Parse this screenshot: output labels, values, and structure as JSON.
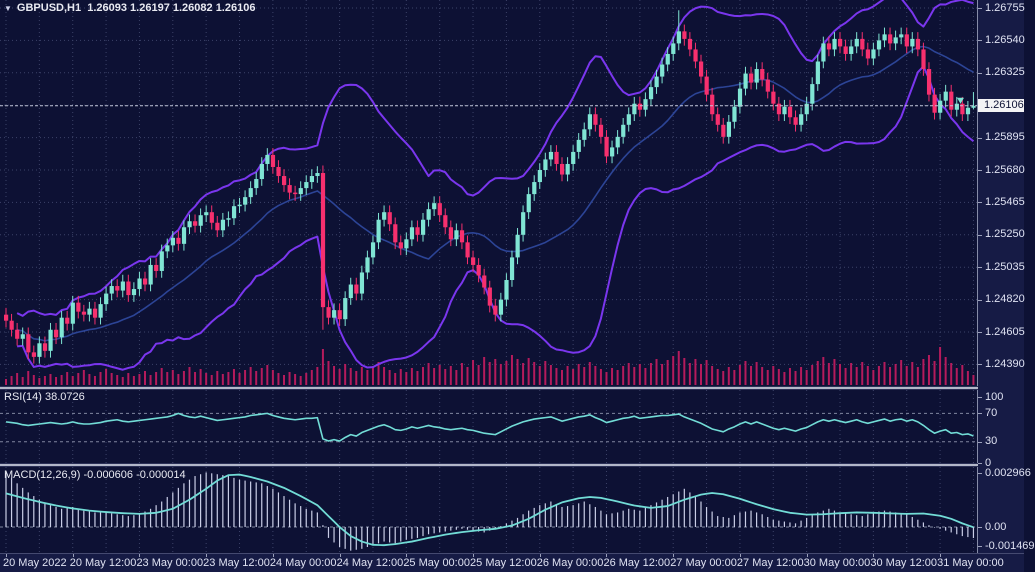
{
  "title": {
    "symbol_period": "GBPUSD,H1",
    "ohlc_text": "1.26093 1.26197 1.26082 1.26106",
    "dropdown_icon": "triangle-down"
  },
  "panes": {
    "rsi": {
      "label": "RSI(14)",
      "value": "38.0726"
    },
    "macd": {
      "label": "MACD(12,26,9)",
      "values": "-0.000606 -0.000014"
    }
  },
  "price_axis": {
    "current_price": "1.26106",
    "grid_prices": [
      1.26755,
      1.2654,
      1.26325,
      1.2611,
      1.25895,
      1.2568,
      1.25465,
      1.2525,
      1.25035,
      1.2482,
      1.24605,
      1.2439
    ],
    "labels": [
      {
        "text": "1.26755",
        "price": 1.26755
      },
      {
        "text": "1.26540",
        "price": 1.2654
      },
      {
        "text": "1.26325",
        "price": 1.26325
      },
      {
        "text": "1.25895",
        "price": 1.25895
      },
      {
        "text": "1.25680",
        "price": 1.2568
      },
      {
        "text": "1.25465",
        "price": 1.25465
      },
      {
        "text": "1.25250",
        "price": 1.2525
      },
      {
        "text": "1.25035",
        "price": 1.25035
      },
      {
        "text": "1.24820",
        "price": 1.2482
      },
      {
        "text": "1.24605",
        "price": 1.24605
      },
      {
        "text": "1.24390",
        "price": 1.2439
      }
    ],
    "rsi_levels": [
      {
        "text": "100",
        "value": 100
      },
      {
        "text": "70",
        "value": 70
      },
      {
        "text": "30",
        "value": 30
      },
      {
        "text": "0",
        "value": 0
      }
    ],
    "macd_levels": [
      {
        "text": "0.002966",
        "value": 0.002966
      },
      {
        "text": "0.00",
        "value": 0
      },
      {
        "text": "-0.001469",
        "value": -0.001469
      }
    ]
  },
  "time_axis": {
    "labels": [
      {
        "text": "20 May 2022",
        "bar": 0
      },
      {
        "text": "20 May 12:00",
        "bar": 12
      },
      {
        "text": "23 May 00:00",
        "bar": 24
      },
      {
        "text": "23 May 12:00",
        "bar": 36
      },
      {
        "text": "24 May 00:00",
        "bar": 48
      },
      {
        "text": "24 May 12:00",
        "bar": 60
      },
      {
        "text": "25 May 00:00",
        "bar": 72
      },
      {
        "text": "25 May 12:00",
        "bar": 84
      },
      {
        "text": "26 May 00:00",
        "bar": 96
      },
      {
        "text": "26 May 12:00",
        "bar": 108
      },
      {
        "text": "27 May 00:00",
        "bar": 120
      },
      {
        "text": "27 May 12:00",
        "bar": 132
      },
      {
        "text": "30 May 00:00",
        "bar": 144
      },
      {
        "text": "30 May 12:00",
        "bar": 156
      },
      {
        "text": "31 May 00:00",
        "bar": 168
      }
    ]
  },
  "colors": {
    "background": "#0d1134",
    "axis_background": "#161b45",
    "grid": "#3c4268",
    "bull_candle": "#80e5d4",
    "bear_candle": "#f7306e",
    "bollinger_outer": "#7a36ee",
    "bollinger_middle": "#2c4496",
    "indicator_line": "#72dcd6",
    "macd_histogram": "#c9cde6",
    "volume": "#b51b5c",
    "level_line": "#80869f",
    "bid_line": "#c2c6d8",
    "axis_text": "#dfe2f2",
    "price_tag_bg": "#f4f4f6",
    "price_tag_text": "#0e1235",
    "separator": "#b3b7c9"
  },
  "chart_data": [
    {
      "type": "candlestick",
      "title": "GBPUSD,H1",
      "last_ohlc": {
        "open": 1.26093,
        "high": 1.26197,
        "low": 1.26082,
        "close": 1.26106
      },
      "ylabel": "price",
      "ylim": [
        1.2425,
        1.2681
      ],
      "x_unit": "1 hour per bar, 20 May 2022 00:00 through 31 May 2022 06:00",
      "open_rule": "previous_close",
      "wick_estimate": 0.00045,
      "overrides": {
        "57": {
          "open": 1.2566,
          "high": 1.2571,
          "low": 1.2462
        },
        "121": {
          "high": 1.2674
        },
        "174": {
          "open": 1.26093,
          "high": 1.26197,
          "low": 1.26082,
          "close": 1.26106
        }
      },
      "indicator": "Bollinger Bands (20, 2)",
      "closes": [
        1.2468,
        1.2462,
        1.2456,
        1.2459,
        1.2447,
        1.2444,
        1.2453,
        1.2448,
        1.2462,
        1.2457,
        1.247,
        1.2466,
        1.248,
        1.2474,
        1.2472,
        1.2476,
        1.247,
        1.2479,
        1.2486,
        1.2491,
        1.2488,
        1.2494,
        1.2485,
        1.2489,
        1.2496,
        1.2492,
        1.2505,
        1.2501,
        1.2514,
        1.2518,
        1.2523,
        1.2519,
        1.253,
        1.2534,
        1.2531,
        1.2538,
        1.254,
        1.2533,
        1.2528,
        1.2535,
        1.2536,
        1.2544,
        1.2545,
        1.255,
        1.2556,
        1.2562,
        1.2572,
        1.2578,
        1.257,
        1.2564,
        1.2558,
        1.2553,
        1.2552,
        1.2556,
        1.256,
        1.2564,
        1.2566,
        1.2477,
        1.247,
        1.2475,
        1.2469,
        1.2483,
        1.2492,
        1.2486,
        1.25,
        1.251,
        1.252,
        1.2535,
        1.254,
        1.2532,
        1.252,
        1.2516,
        1.2522,
        1.253,
        1.2525,
        1.2535,
        1.2542,
        1.2546,
        1.2538,
        1.253,
        1.2522,
        1.2528,
        1.252,
        1.251,
        1.2505,
        1.2498,
        1.249,
        1.2478,
        1.2472,
        1.2482,
        1.2495,
        1.251,
        1.2525,
        1.254,
        1.2552,
        1.256,
        1.2568,
        1.2575,
        1.258,
        1.2572,
        1.2565,
        1.2572,
        1.258,
        1.2588,
        1.2595,
        1.2605,
        1.2598,
        1.259,
        1.2577,
        1.2583,
        1.259,
        1.2598,
        1.2605,
        1.2612,
        1.2608,
        1.2615,
        1.2623,
        1.263,
        1.2638,
        1.2645,
        1.2652,
        1.266,
        1.2655,
        1.2648,
        1.264,
        1.263,
        1.2618,
        1.2605,
        1.2598,
        1.259,
        1.26,
        1.261,
        1.2622,
        1.2632,
        1.2626,
        1.2635,
        1.2628,
        1.262,
        1.2612,
        1.2605,
        1.261,
        1.2603,
        1.2598,
        1.2605,
        1.2612,
        1.2625,
        1.264,
        1.2652,
        1.2648,
        1.2655,
        1.265,
        1.2645,
        1.265,
        1.2655,
        1.2648,
        1.2642,
        1.2648,
        1.2654,
        1.2658,
        1.2652,
        1.2656,
        1.2658,
        1.265,
        1.2655,
        1.2648,
        1.2635,
        1.2618,
        1.2606,
        1.2614,
        1.262,
        1.2608,
        1.2612,
        1.2605,
        1.26093,
        1.26106
      ],
      "volumes": [
        6,
        9,
        12,
        8,
        14,
        10,
        7,
        9,
        11,
        8,
        10,
        13,
        9,
        12,
        15,
        11,
        9,
        13,
        16,
        12,
        10,
        8,
        12,
        9,
        11,
        14,
        10,
        13,
        17,
        13,
        15,
        11,
        14,
        18,
        13,
        16,
        12,
        10,
        14,
        11,
        13,
        16,
        12,
        15,
        18,
        14,
        17,
        20,
        15,
        12,
        10,
        13,
        11,
        9,
        12,
        15,
        18,
        36,
        24,
        19,
        16,
        21,
        17,
        14,
        18,
        15,
        19,
        23,
        18,
        15,
        12,
        16,
        13,
        17,
        14,
        18,
        22,
        17,
        20,
        16,
        19,
        15,
        22,
        18,
        25,
        20,
        28,
        23,
        26,
        21,
        24,
        30,
        26,
        22,
        27,
        23,
        19,
        24,
        20,
        17,
        15,
        19,
        16,
        21,
        18,
        23,
        19,
        16,
        13,
        17,
        15,
        19,
        22,
        18,
        21,
        17,
        22,
        26,
        21,
        25,
        29,
        34,
        27,
        22,
        26,
        21,
        25,
        19,
        16,
        14,
        18,
        15,
        20,
        24,
        19,
        23,
        18,
        15,
        19,
        16,
        13,
        17,
        14,
        18,
        15,
        20,
        24,
        28,
        22,
        26,
        21,
        17,
        22,
        18,
        23,
        19,
        15,
        19,
        23,
        18,
        21,
        25,
        19,
        23,
        18,
        26,
        30,
        24,
        38,
        28,
        22,
        17,
        20,
        14,
        10
      ]
    },
    {
      "type": "line",
      "title": "RSI(14)",
      "last_value": 38.0726,
      "levels": [
        70,
        30
      ],
      "ylim": [
        0,
        100
      ],
      "values": [
        58,
        57,
        56,
        54,
        53,
        54,
        55,
        56,
        57,
        56,
        55,
        56,
        58,
        56,
        55,
        55,
        56,
        57,
        59,
        60,
        61,
        59,
        58,
        59,
        60,
        61,
        62,
        63,
        64,
        65,
        67,
        70,
        67,
        65,
        64,
        66,
        64,
        62,
        60,
        61,
        62,
        63,
        64,
        65,
        67,
        68,
        69,
        70,
        67,
        65,
        63,
        62,
        61,
        62,
        63,
        63,
        64,
        34,
        31,
        33,
        31,
        36,
        40,
        38,
        43,
        46,
        49,
        52,
        54,
        51,
        47,
        46,
        48,
        51,
        49,
        51,
        53,
        51,
        50,
        48,
        47,
        48,
        49,
        47,
        46,
        44,
        42,
        41,
        40,
        44,
        48,
        52,
        55,
        58,
        60,
        62,
        63,
        64,
        65,
        62,
        59,
        61,
        63,
        65,
        66,
        68,
        64,
        61,
        57,
        59,
        61,
        63,
        64,
        66,
        63,
        64,
        65,
        66,
        67,
        67,
        68,
        69,
        65,
        62,
        59,
        56,
        52,
        48,
        46,
        44,
        48,
        51,
        55,
        58,
        55,
        58,
        55,
        52,
        49,
        47,
        49,
        47,
        45,
        48,
        50,
        54,
        58,
        61,
        59,
        61,
        59,
        57,
        59,
        61,
        58,
        56,
        58,
        60,
        62,
        59,
        61,
        62,
        59,
        61,
        58,
        53,
        47,
        42,
        45,
        47,
        42,
        43,
        40,
        41,
        38.1
      ]
    },
    {
      "type": "macd",
      "title": "MACD(12,26,9)",
      "last_macd": -0.000606,
      "last_signal": -1.4e-05,
      "ylim": [
        -0.001469,
        0.002966
      ],
      "histogram_points": [
        [
          0,
          0.003
        ],
        [
          2,
          0.0024
        ],
        [
          4,
          0.0019
        ],
        [
          6,
          0.0015
        ],
        [
          8,
          0.0012
        ],
        [
          10,
          0.001
        ],
        [
          12,
          0.0011
        ],
        [
          14,
          0.0009
        ],
        [
          16,
          0.0008
        ],
        [
          18,
          0.0008
        ],
        [
          20,
          0.0007
        ],
        [
          22,
          0.0006
        ],
        [
          24,
          0.0007
        ],
        [
          26,
          0.001
        ],
        [
          28,
          0.0014
        ],
        [
          30,
          0.0019
        ],
        [
          32,
          0.0024
        ],
        [
          34,
          0.0028
        ],
        [
          36,
          0.003
        ],
        [
          38,
          0.0029
        ],
        [
          40,
          0.0028
        ],
        [
          42,
          0.0026
        ],
        [
          44,
          0.0025
        ],
        [
          46,
          0.0024
        ],
        [
          48,
          0.0021
        ],
        [
          50,
          0.0017
        ],
        [
          52,
          0.0013
        ],
        [
          54,
          0.001
        ],
        [
          56,
          0.0008
        ],
        [
          57,
          0.0001
        ],
        [
          58,
          -0.0006
        ],
        [
          60,
          -0.0011
        ],
        [
          62,
          -0.0013
        ],
        [
          64,
          -0.0012
        ],
        [
          66,
          -0.001
        ],
        [
          68,
          -0.0008
        ],
        [
          70,
          -0.0009
        ],
        [
          72,
          -0.0007
        ],
        [
          74,
          -0.0006
        ],
        [
          76,
          -0.0004
        ],
        [
          78,
          -0.0003
        ],
        [
          80,
          -0.0002
        ],
        [
          82,
          -0.0001
        ],
        [
          84,
          -0.0002
        ],
        [
          86,
          -0.0003
        ],
        [
          88,
          -0.0001
        ],
        [
          90,
          0.0002
        ],
        [
          92,
          0.0005
        ],
        [
          94,
          0.0009
        ],
        [
          96,
          0.0012
        ],
        [
          98,
          0.0014
        ],
        [
          100,
          0.0011
        ],
        [
          102,
          0.0012
        ],
        [
          104,
          0.0014
        ],
        [
          106,
          0.0011
        ],
        [
          108,
          0.0007
        ],
        [
          110,
          0.0008
        ],
        [
          112,
          0.001
        ],
        [
          114,
          0.0009
        ],
        [
          116,
          0.0012
        ],
        [
          118,
          0.0015
        ],
        [
          120,
          0.0018
        ],
        [
          122,
          0.0021
        ],
        [
          124,
          0.0017
        ],
        [
          126,
          0.0011
        ],
        [
          128,
          0.0006
        ],
        [
          130,
          0.0005
        ],
        [
          132,
          0.0008
        ],
        [
          134,
          0.0009
        ],
        [
          136,
          0.0007
        ],
        [
          138,
          0.0004
        ],
        [
          140,
          0.0003
        ],
        [
          142,
          0.0002
        ],
        [
          144,
          0.0005
        ],
        [
          146,
          0.0008
        ],
        [
          148,
          0.001
        ],
        [
          150,
          0.0008
        ],
        [
          152,
          0.0007
        ],
        [
          154,
          0.0006
        ],
        [
          156,
          0.0008
        ],
        [
          158,
          0.0009
        ],
        [
          160,
          0.0008
        ],
        [
          162,
          0.0007
        ],
        [
          164,
          0.0004
        ],
        [
          166,
          0.0001
        ],
        [
          168,
          -0.0001
        ],
        [
          170,
          -0.0003
        ],
        [
          172,
          -0.0005
        ],
        [
          174,
          -0.000606
        ]
      ],
      "signal_points": [
        [
          0,
          0.00185
        ],
        [
          3,
          0.0016
        ],
        [
          6,
          0.00138
        ],
        [
          9,
          0.00118
        ],
        [
          12,
          0.00102
        ],
        [
          15,
          0.0009
        ],
        [
          18,
          0.00082
        ],
        [
          21,
          0.00076
        ],
        [
          24,
          0.00072
        ],
        [
          27,
          0.00078
        ],
        [
          30,
          0.001
        ],
        [
          33,
          0.0015
        ],
        [
          36,
          0.0021
        ],
        [
          38,
          0.00255
        ],
        [
          40,
          0.00285
        ],
        [
          42,
          0.00288
        ],
        [
          44,
          0.00275
        ],
        [
          47,
          0.0025
        ],
        [
          50,
          0.00215
        ],
        [
          53,
          0.0017
        ],
        [
          56,
          0.0012
        ],
        [
          58,
          0.0006
        ],
        [
          60,
          0.0
        ],
        [
          62,
          -0.0005
        ],
        [
          64,
          -0.0008
        ],
        [
          66,
          -0.00098
        ],
        [
          68,
          -0.001
        ],
        [
          70,
          -0.00094
        ],
        [
          73,
          -0.0008
        ],
        [
          76,
          -0.0006
        ],
        [
          79,
          -0.00042
        ],
        [
          82,
          -0.00028
        ],
        [
          85,
          -0.00018
        ],
        [
          88,
          -0.0001
        ],
        [
          91,
          8e-05
        ],
        [
          94,
          0.00045
        ],
        [
          97,
          0.00095
        ],
        [
          100,
          0.00135
        ],
        [
          103,
          0.00158
        ],
        [
          105,
          0.00165
        ],
        [
          107,
          0.0016
        ],
        [
          110,
          0.0014
        ],
        [
          113,
          0.00118
        ],
        [
          116,
          0.00105
        ],
        [
          119,
          0.00115
        ],
        [
          122,
          0.0015
        ],
        [
          125,
          0.00178
        ],
        [
          127,
          0.00187
        ],
        [
          129,
          0.0018
        ],
        [
          132,
          0.00155
        ],
        [
          135,
          0.00125
        ],
        [
          138,
          0.00098
        ],
        [
          141,
          0.00078
        ],
        [
          144,
          0.00068
        ],
        [
          147,
          0.0007
        ],
        [
          150,
          0.00076
        ],
        [
          153,
          0.0008
        ],
        [
          156,
          0.00078
        ],
        [
          159,
          0.00075
        ],
        [
          162,
          0.00072
        ],
        [
          165,
          0.00074
        ],
        [
          168,
          0.00062
        ],
        [
          170,
          0.00045
        ],
        [
          172,
          0.0002
        ],
        [
          174,
          -1.4e-05
        ]
      ]
    }
  ]
}
